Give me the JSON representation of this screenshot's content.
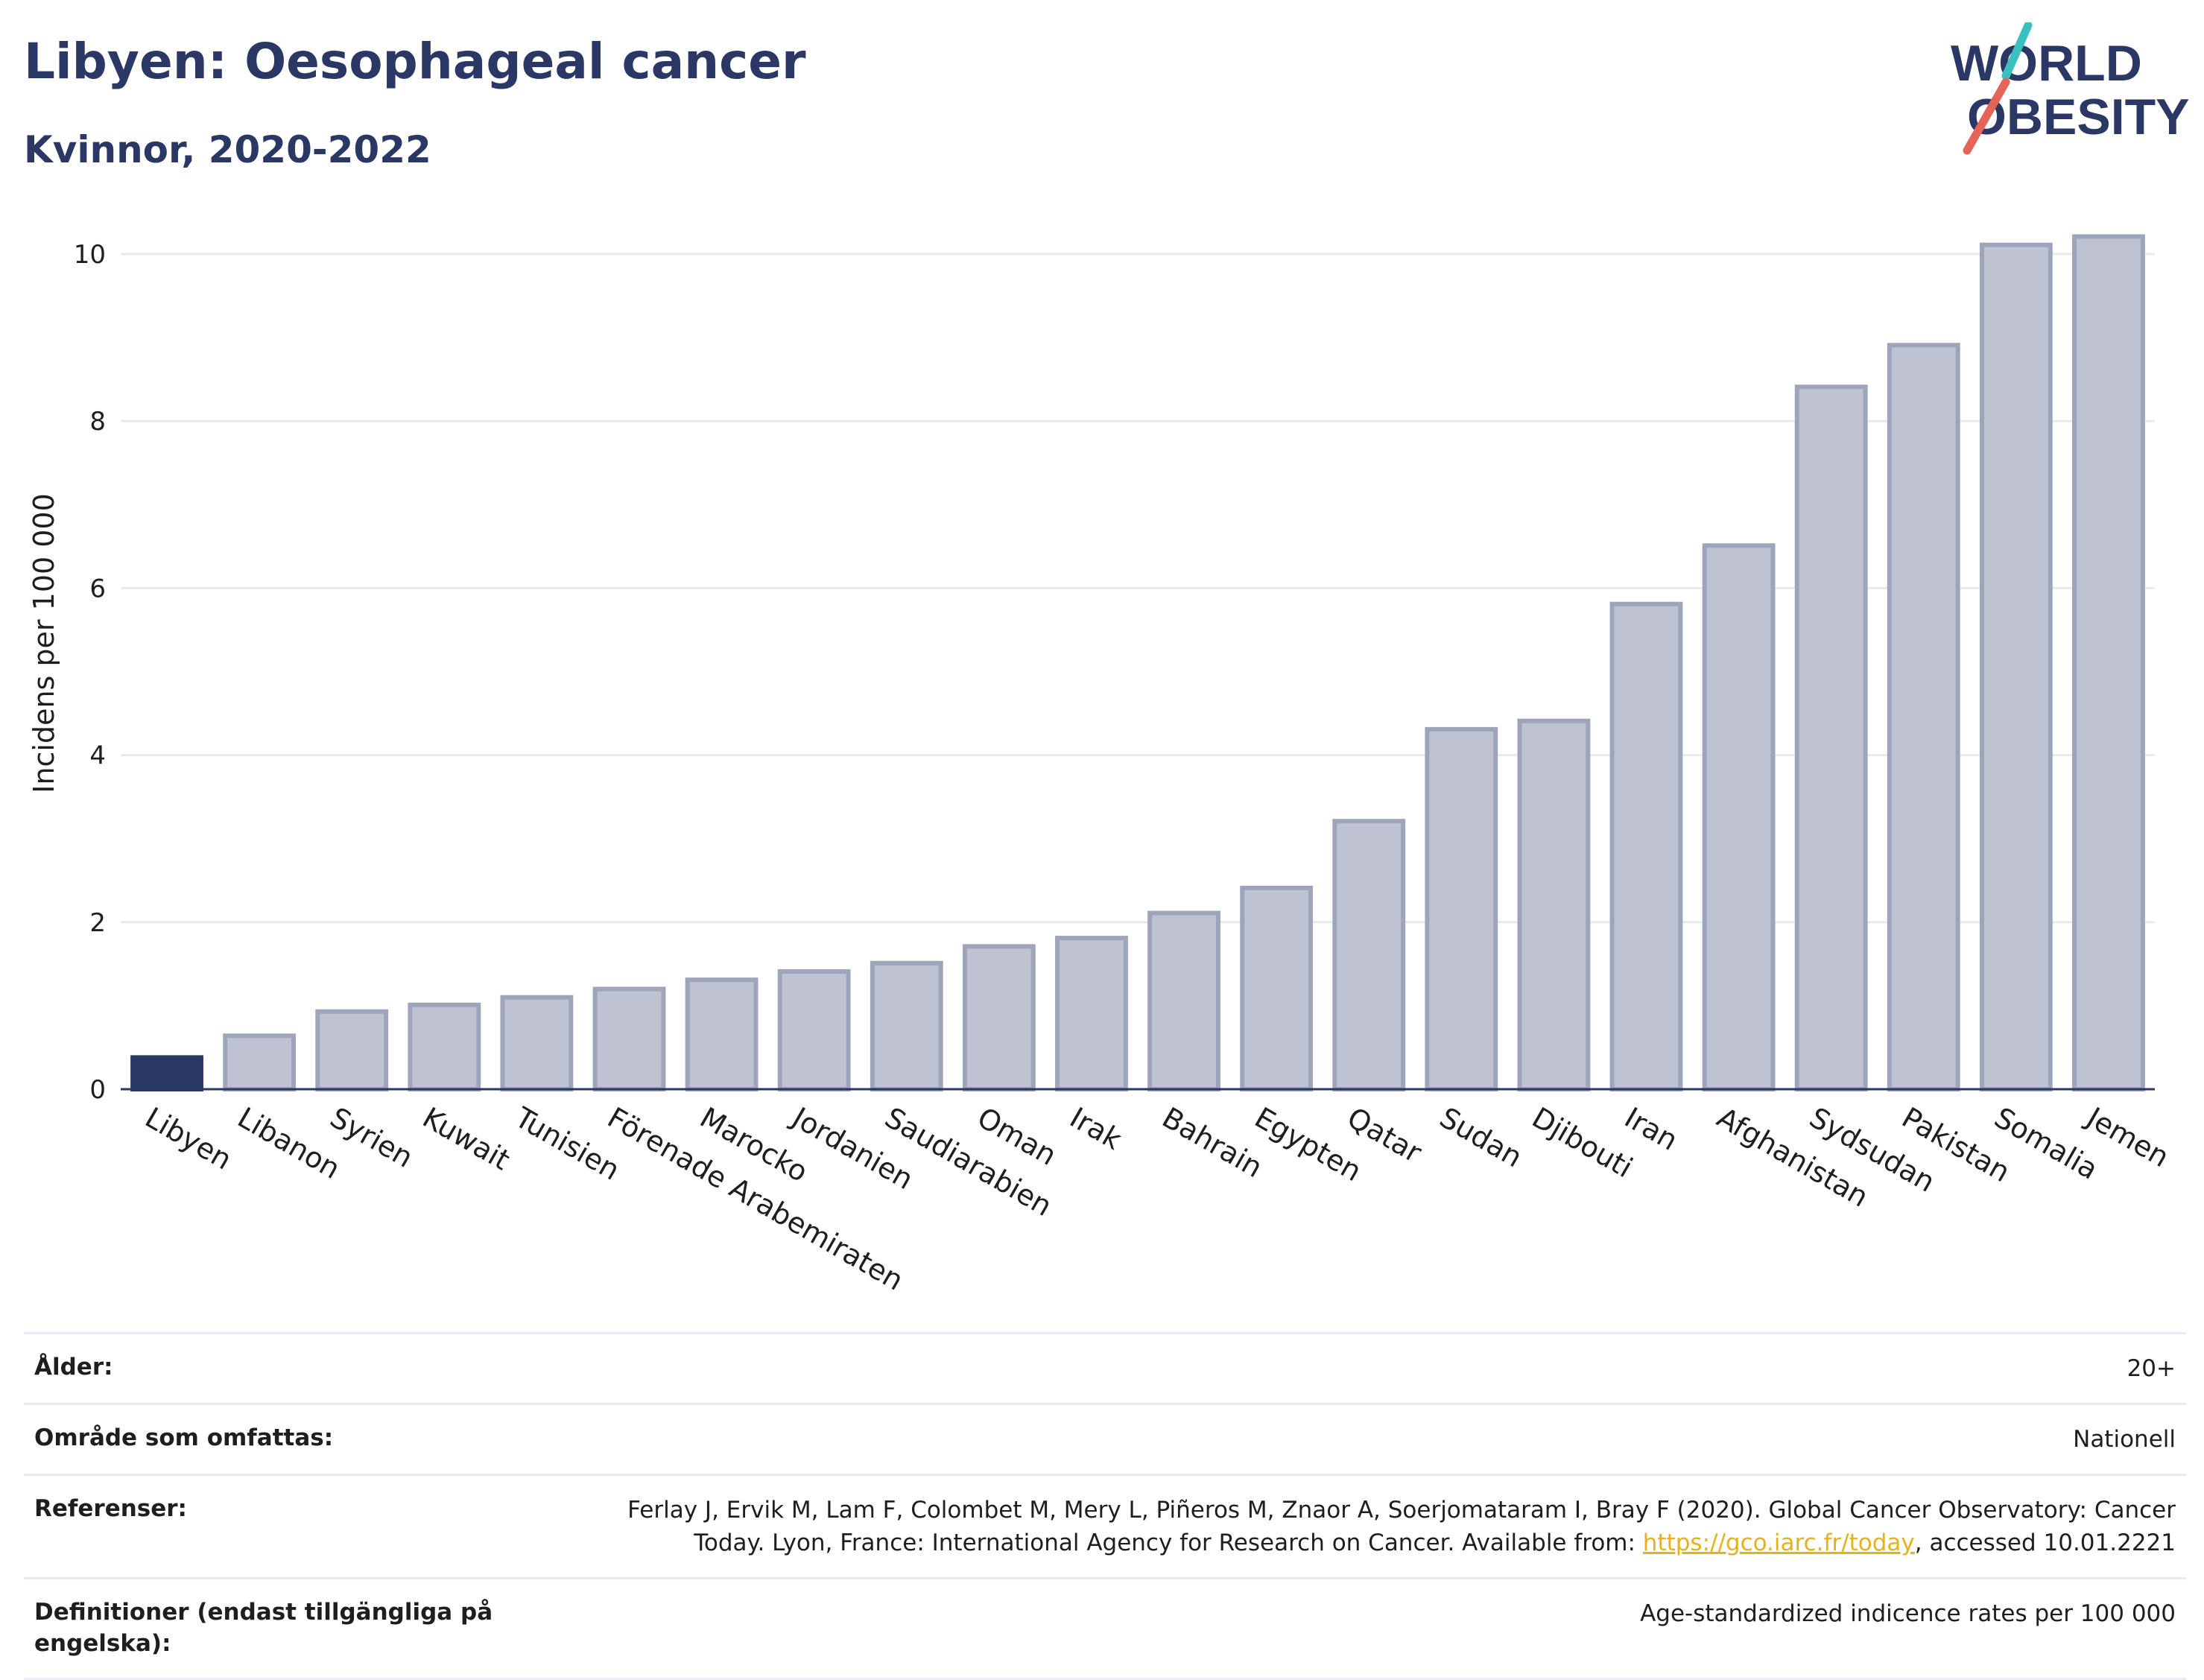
{
  "header": {
    "title": "Libyen: Oesophageal cancer",
    "subtitle": "Kvinnor, 2020-2022"
  },
  "logo": {
    "line1": "WORLD",
    "line2": "OBESITY"
  },
  "colors": {
    "highlight": "#2b3764",
    "bar_fill": "#bfc3d1",
    "bar_stroke": "#9ea4ba",
    "axis": "#2b3764",
    "grid": "#e7ebf0",
    "link": "#e6b21c",
    "logo_teal": "#3cbfc1",
    "logo_red": "#e5645a"
  },
  "chart_data": {
    "type": "bar",
    "ylabel": "Incidens per 100 000",
    "ylim": [
      0,
      10.5
    ],
    "yticks": [
      0,
      2,
      4,
      6,
      8,
      10
    ],
    "grid": true,
    "highlight": "Libyen",
    "categories": [
      "Libyen",
      "Libanon",
      "Syrien",
      "Kuwait",
      "Tunisien",
      "Förenade Arabemiraten",
      "Marocko",
      "Jordanien",
      "Saudiarabien",
      "Oman",
      "Irak",
      "Bahrain",
      "Egypten",
      "Qatar",
      "Sudan",
      "Djibouti",
      "Iran",
      "Afghanistan",
      "Sydsudan",
      "Pakistan",
      "Somalia",
      "Jemen"
    ],
    "values": [
      0.38,
      0.64,
      0.93,
      1.01,
      1.1,
      1.2,
      1.31,
      1.41,
      1.51,
      1.71,
      1.81,
      2.11,
      2.41,
      3.21,
      4.31,
      4.41,
      5.81,
      6.51,
      8.41,
      8.91,
      10.11,
      10.21
    ]
  },
  "info": {
    "age_label": "Ålder:",
    "age_value": "20+",
    "area_label": "Område som omfattas:",
    "area_value": "Nationell",
    "ref_label": "Referenser:",
    "ref_text_1": "Ferlay J, Ervik M, Lam F, Colombet M, Mery L, Piñeros M, Znaor A, Soerjomataram I, Bray F (2020). Global Cancer Observatory: Cancer Today. Lyon, France: International Agency for Research on Cancer. Available from: ",
    "ref_link": "https://gco.iarc.fr/today",
    "ref_text_2": ", accessed 10.01.2221",
    "def_label": "Definitioner (endast tillgängliga på engelska):",
    "def_value": "Age-standardized indicence rates per 100 000"
  }
}
